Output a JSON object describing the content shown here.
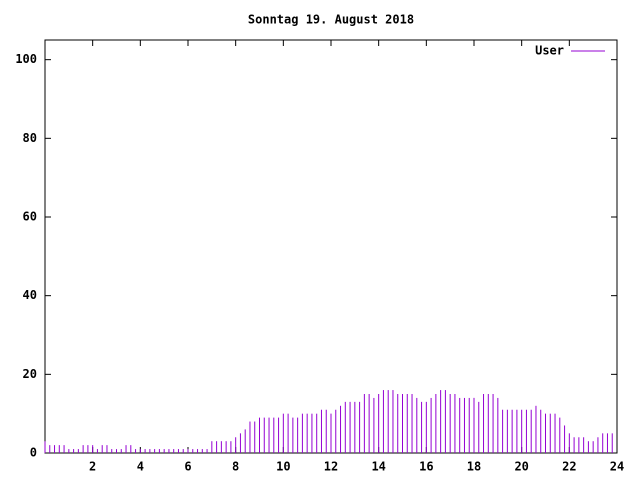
{
  "chart_data": {
    "type": "impulse",
    "title": "Sonntag 19. August 2018",
    "xlim": [
      0,
      24
    ],
    "xticks": [
      2,
      4,
      6,
      8,
      10,
      12,
      14,
      16,
      18,
      20,
      22,
      24
    ],
    "ylim": [
      0,
      105
    ],
    "yticks": [
      0,
      20,
      40,
      60,
      80,
      100
    ],
    "legend": "top-right",
    "series": [
      {
        "name": "User",
        "color": "#9400d3",
        "x": [
          0,
          0.2,
          0.4,
          0.6,
          0.8,
          1,
          1.2,
          1.4,
          1.6,
          1.8,
          2,
          2.2,
          2.4,
          2.6,
          2.8,
          3,
          3.2,
          3.4,
          3.6,
          3.8,
          4,
          4.2,
          4.4,
          4.6,
          4.8,
          5,
          5.2,
          5.4,
          5.6,
          5.8,
          6,
          6.2,
          6.4,
          6.6,
          6.8,
          7,
          7.2,
          7.4,
          7.6,
          7.8,
          8,
          8.2,
          8.4,
          8.6,
          8.8,
          9,
          9.2,
          9.4,
          9.6,
          9.8,
          10,
          10.2,
          10.4,
          10.6,
          10.8,
          11,
          11.2,
          11.4,
          11.6,
          11.8,
          12,
          12.2,
          12.4,
          12.6,
          12.8,
          13,
          13.2,
          13.4,
          13.6,
          13.8,
          14,
          14.2,
          14.4,
          14.6,
          14.8,
          15,
          15.2,
          15.4,
          15.6,
          15.8,
          16,
          16.2,
          16.4,
          16.6,
          16.8,
          17,
          17.2,
          17.4,
          17.6,
          17.8,
          18,
          18.2,
          18.4,
          18.6,
          18.8,
          19,
          19.2,
          19.4,
          19.6,
          19.8,
          20,
          20.2,
          20.4,
          20.6,
          20.8,
          21,
          21.2,
          21.4,
          21.6,
          21.8,
          22,
          22.2,
          22.4,
          22.6,
          22.8,
          23,
          23.2,
          23.4,
          23.6,
          23.8
        ],
        "values": [
          3,
          2,
          2,
          2,
          2,
          1,
          1,
          1,
          2,
          2,
          2,
          1,
          2,
          2,
          1,
          1,
          1,
          2,
          2,
          1,
          1,
          1,
          1,
          1,
          1,
          1,
          1,
          1,
          1,
          1,
          1,
          1,
          1,
          1,
          1,
          3,
          3,
          3,
          3,
          3,
          4,
          5,
          6,
          8,
          8,
          9,
          9,
          9,
          9,
          9,
          10,
          10,
          9,
          9,
          10,
          10,
          10,
          10,
          11,
          11,
          10,
          11,
          12,
          13,
          13,
          13,
          13,
          15,
          15,
          14,
          15,
          16,
          16,
          16,
          15,
          15,
          15,
          15,
          14,
          13,
          13,
          14,
          15,
          16,
          16,
          15,
          15,
          14,
          14,
          14,
          14,
          13,
          15,
          15,
          15,
          14,
          11,
          11,
          11,
          11,
          11,
          11,
          11,
          12,
          11,
          10,
          10,
          10,
          9,
          7,
          5,
          4,
          4,
          4,
          3,
          3,
          4,
          5,
          5,
          5
        ]
      }
    ]
  }
}
